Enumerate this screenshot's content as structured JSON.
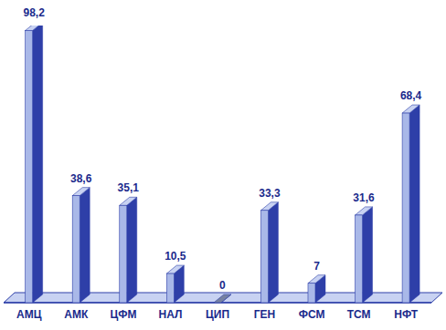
{
  "chart_data": {
    "type": "bar",
    "categories": [
      "АМЦ",
      "АМК",
      "ЦФМ",
      "НАЛ",
      "ЦИП",
      "ГЕН",
      "ФСМ",
      "ТСМ",
      "НФТ"
    ],
    "values": [
      98.2,
      38.6,
      35.1,
      10.5,
      0,
      33.3,
      7,
      31.6,
      68.4
    ],
    "value_labels": [
      "98,2",
      "38,6",
      "35,1",
      "10,5",
      "0",
      "33,3",
      "7",
      "31,6",
      "68,4"
    ],
    "color": "#a9b8e8",
    "ylim": [
      0,
      100
    ],
    "data_labels": true,
    "tick_labels": "x",
    "grid": false
  }
}
